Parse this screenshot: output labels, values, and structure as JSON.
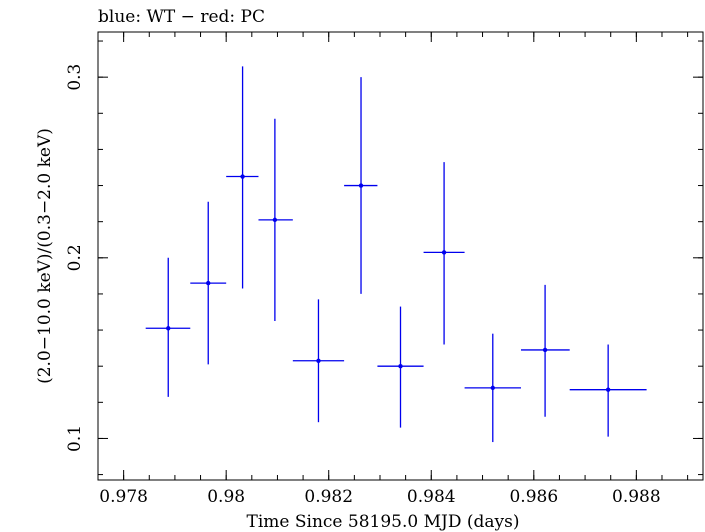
{
  "chart_data": {
    "type": "scatter",
    "title": "blue: WT − red: PC",
    "xlabel": "Time Since 58195.0 MJD (days)",
    "ylabel": "(2.0−10.0 keV)/(0.3−2.0 keV)",
    "xlim": [
      0.9775,
      0.9893
    ],
    "ylim": [
      0.077,
      0.325
    ],
    "xticks": [
      {
        "value": 0.978,
        "label": "0.978"
      },
      {
        "value": 0.98,
        "label": "0.98"
      },
      {
        "value": 0.982,
        "label": "0.982"
      },
      {
        "value": 0.984,
        "label": "0.984"
      },
      {
        "value": 0.986,
        "label": "0.986"
      },
      {
        "value": 0.988,
        "label": "0.988"
      }
    ],
    "yticks": [
      {
        "value": 0.1,
        "label": "0.1"
      },
      {
        "value": 0.2,
        "label": "0.2"
      },
      {
        "value": 0.3,
        "label": "0.3"
      }
    ],
    "xminor_step": 0.0005,
    "yminor_step": 0.02,
    "grid": false,
    "series": [
      {
        "color": "#0000ee",
        "points": [
          {
            "x": 0.97887,
            "y": 0.161,
            "xlo": 0.97843,
            "xhi": 0.9793,
            "ylo": 0.123,
            "yhi": 0.2
          },
          {
            "x": 0.97965,
            "y": 0.186,
            "xlo": 0.9793,
            "xhi": 0.98,
            "ylo": 0.141,
            "yhi": 0.231
          },
          {
            "x": 0.98032,
            "y": 0.245,
            "xlo": 0.98,
            "xhi": 0.98063,
            "ylo": 0.183,
            "yhi": 0.306
          },
          {
            "x": 0.98095,
            "y": 0.221,
            "xlo": 0.98063,
            "xhi": 0.9813,
            "ylo": 0.165,
            "yhi": 0.277
          },
          {
            "x": 0.9818,
            "y": 0.143,
            "xlo": 0.9813,
            "xhi": 0.9823,
            "ylo": 0.109,
            "yhi": 0.177
          },
          {
            "x": 0.98263,
            "y": 0.24,
            "xlo": 0.9823,
            "xhi": 0.98295,
            "ylo": 0.18,
            "yhi": 0.3
          },
          {
            "x": 0.9834,
            "y": 0.14,
            "xlo": 0.98295,
            "xhi": 0.98385,
            "ylo": 0.106,
            "yhi": 0.173
          },
          {
            "x": 0.98425,
            "y": 0.203,
            "xlo": 0.98385,
            "xhi": 0.98465,
            "ylo": 0.152,
            "yhi": 0.253
          },
          {
            "x": 0.9852,
            "y": 0.128,
            "xlo": 0.98465,
            "xhi": 0.98575,
            "ylo": 0.098,
            "yhi": 0.158
          },
          {
            "x": 0.98622,
            "y": 0.149,
            "xlo": 0.98575,
            "xhi": 0.9867,
            "ylo": 0.112,
            "yhi": 0.185
          },
          {
            "x": 0.98745,
            "y": 0.127,
            "xlo": 0.9867,
            "xhi": 0.9882,
            "ylo": 0.101,
            "yhi": 0.152
          }
        ]
      }
    ]
  }
}
